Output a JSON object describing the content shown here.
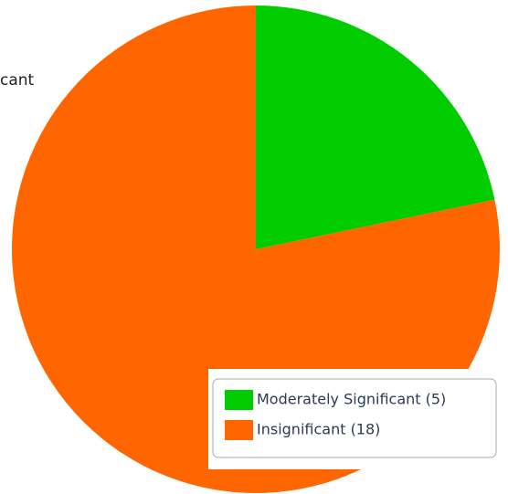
{
  "chart_data": {
    "type": "pie",
    "categories": [
      "Moderately Significant (5)",
      "Insignificant (18)"
    ],
    "values": [
      5,
      18
    ],
    "colors": [
      "#00cc00",
      "#ff6600"
    ],
    "annotation": "cant",
    "legend": "bottom-right"
  }
}
